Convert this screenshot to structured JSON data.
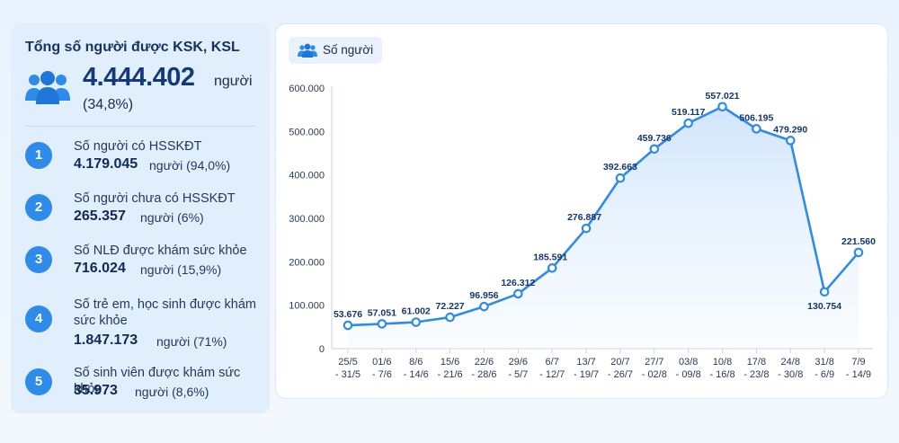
{
  "summary": {
    "title": "Tổng số người được KSK, KSL",
    "total_value": "4.444.402",
    "total_unit": "người",
    "total_pct": "(34,8%)",
    "icon": "people-group-icon",
    "items": [
      {
        "num": "1",
        "label": "Số người có HSSKĐT",
        "value": "4.179.045",
        "note": "người (94,0%)"
      },
      {
        "num": "2",
        "label": "Số người chưa có HSSKĐT",
        "value": "265.357",
        "note": "người (6%)"
      },
      {
        "num": "3",
        "label": "Số NLĐ được khám sức khỏe",
        "value": "716.024",
        "note": "người (15,9%)"
      },
      {
        "num": "4",
        "label": "Số trẻ em, học sinh được khám sức khỏe",
        "value": "1.847.173",
        "note": "người (71%)"
      },
      {
        "num": "5",
        "label": "Số sinh viên được khám sức khỏe",
        "value": "35.973",
        "note": "người (8,6%)"
      }
    ]
  },
  "colors": {
    "accent": "#2f8bea",
    "line": "#2f8bea",
    "area_top": "#cfe4fb",
    "label": "#14366e"
  },
  "chart_data": {
    "type": "area",
    "legend": "Số người",
    "categories": [
      [
        "25/5",
        "- 31/5"
      ],
      [
        "01/6",
        "- 7/6"
      ],
      [
        "8/6",
        "- 14/6"
      ],
      [
        "15/6",
        "- 21/6"
      ],
      [
        "22/6",
        "- 28/6"
      ],
      [
        "29/6",
        "- 5/7"
      ],
      [
        "6/7",
        "- 12/7"
      ],
      [
        "13/7",
        "- 19/7"
      ],
      [
        "20/7",
        "- 26/7"
      ],
      [
        "27/7",
        "- 02/8"
      ],
      [
        "03/8",
        "- 09/8"
      ],
      [
        "10/8",
        "- 16/8"
      ],
      [
        "17/8",
        "- 23/8"
      ],
      [
        "24/8",
        "- 30/8"
      ],
      [
        "31/8",
        "- 6/9"
      ],
      [
        "7/9",
        "- 14/9"
      ]
    ],
    "values": [
      53676,
      57051,
      61002,
      72227,
      96956,
      126312,
      185591,
      276887,
      392663,
      459736,
      519117,
      557021,
      506195,
      479290,
      130754,
      221560
    ],
    "value_labels": [
      "53.676",
      "57.051",
      "61.002",
      "72.227",
      "96.956",
      "126.312",
      "185.591",
      "276.887",
      "392.663",
      "459.736",
      "519.117",
      "557.021",
      "506.195",
      "479.290",
      "130.754",
      "221.560"
    ],
    "yticks": [
      0,
      100000,
      200000,
      300000,
      400000,
      500000,
      600000
    ],
    "ytick_labels": [
      "0",
      "100.000",
      "200.000",
      "300.000",
      "400.000",
      "500.000",
      "600.000"
    ],
    "ylim": [
      0,
      600000
    ],
    "grid": false
  }
}
